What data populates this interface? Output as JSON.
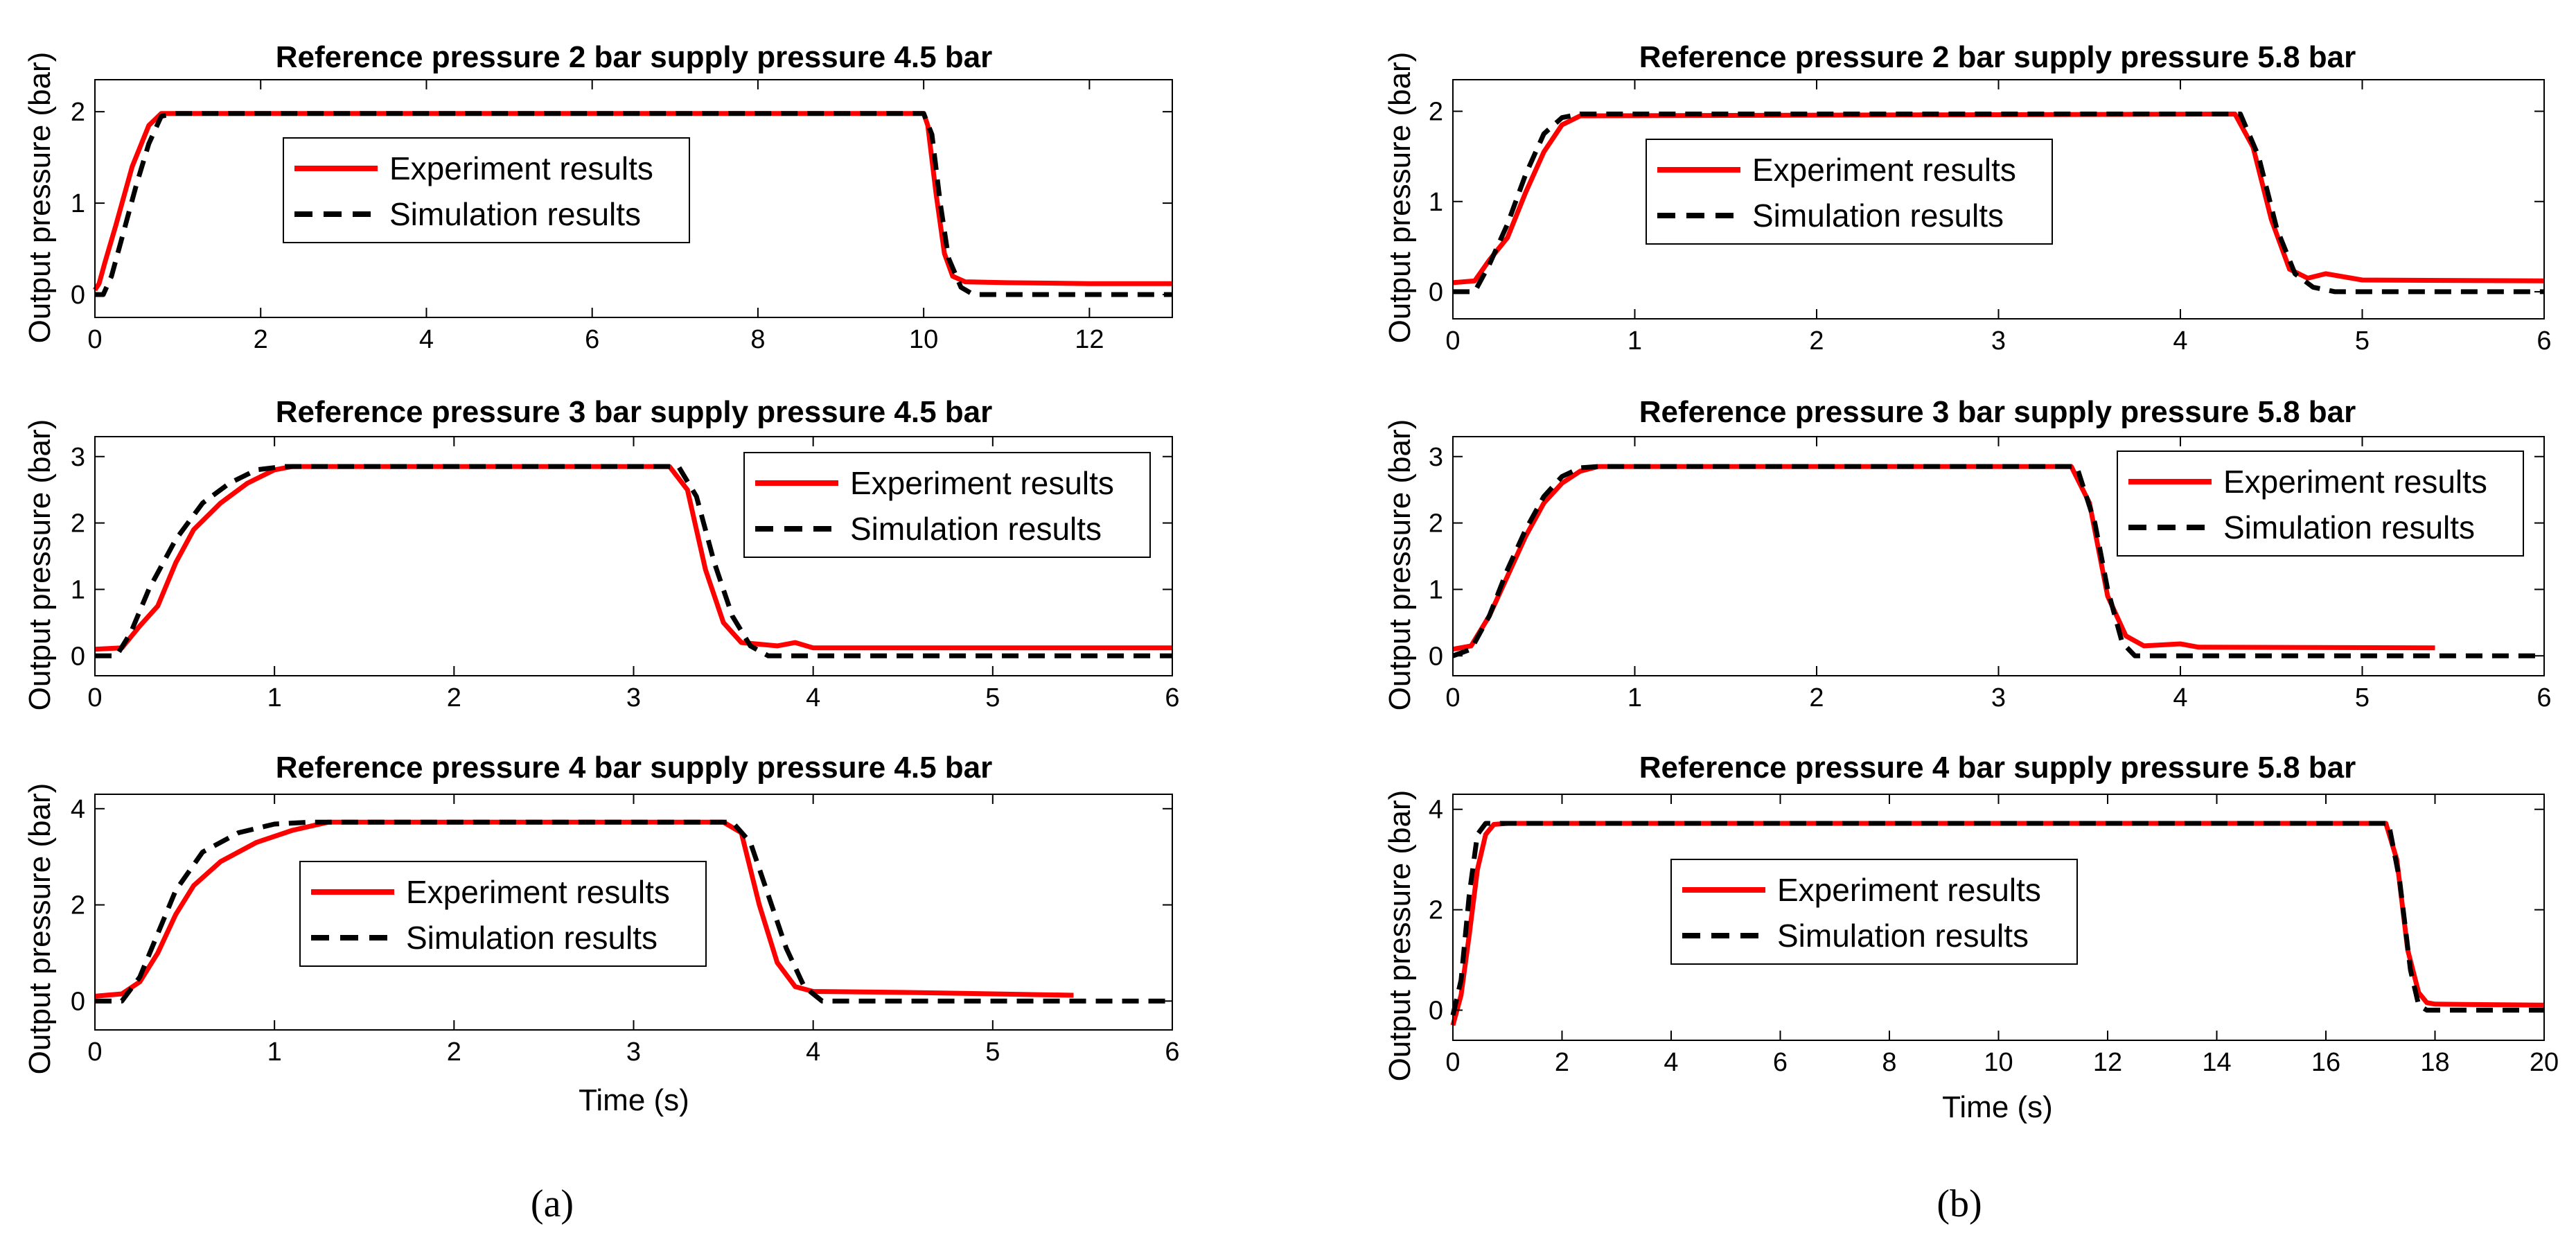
{
  "panel_labels": [
    "(a)",
    "(b)"
  ],
  "legend": {
    "experiment": "Experiment results",
    "simulation": "Simulation results"
  },
  "colors": {
    "experiment": "#ff0000",
    "simulation": "#000000",
    "axes": "#000000"
  },
  "chart_data": [
    {
      "type": "line",
      "title": "Reference pressure 2 bar supply pressure 4.5 bar",
      "xlabel": "",
      "ylabel": "Output pressure (bar)",
      "xlim": [
        0,
        13
      ],
      "ylim": [
        -0.25,
        2.35
      ],
      "xticks": [
        0,
        2,
        4,
        6,
        8,
        10,
        12
      ],
      "yticks": [
        0,
        1,
        2
      ],
      "legend_position": "center-left",
      "series": [
        {
          "name": "Experiment results",
          "style": "solid",
          "x": [
            0,
            0.05,
            0.12,
            0.25,
            0.45,
            0.65,
            0.8,
            0.9,
            10.0,
            10.05,
            10.15,
            10.25,
            10.35,
            10.5,
            11,
            12,
            13
          ],
          "y": [
            0.05,
            0.12,
            0.35,
            0.75,
            1.4,
            1.85,
            1.98,
            1.98,
            1.98,
            1.85,
            1.1,
            0.45,
            0.2,
            0.14,
            0.13,
            0.12,
            0.12
          ]
        },
        {
          "name": "Simulation results",
          "style": "dashed",
          "x": [
            0,
            0.1,
            0.2,
            0.35,
            0.5,
            0.65,
            0.8,
            0.95,
            10.0,
            10.1,
            10.2,
            10.3,
            10.45,
            10.6,
            13
          ],
          "y": [
            0,
            0,
            0.2,
            0.7,
            1.2,
            1.65,
            1.95,
            1.98,
            1.98,
            1.75,
            1.0,
            0.4,
            0.08,
            0,
            0
          ]
        }
      ]
    },
    {
      "type": "line",
      "title": "Reference pressure 3 bar supply pressure 4.5 bar",
      "xlabel": "",
      "ylabel": "Output pressure (bar)",
      "xlim": [
        0,
        6
      ],
      "ylim": [
        -0.3,
        3.3
      ],
      "xticks": [
        0,
        1,
        2,
        3,
        4,
        5,
        6
      ],
      "yticks": [
        0,
        1,
        2,
        3
      ],
      "legend_position": "top-right",
      "series": [
        {
          "name": "Experiment results",
          "style": "solid",
          "x": [
            0,
            0.15,
            0.25,
            0.35,
            0.45,
            0.55,
            0.7,
            0.85,
            1.0,
            1.1,
            3.2,
            3.3,
            3.4,
            3.5,
            3.6,
            3.8,
            3.9,
            4.0,
            6.0
          ],
          "y": [
            0.1,
            0.12,
            0.45,
            0.75,
            1.4,
            1.9,
            2.3,
            2.6,
            2.8,
            2.85,
            2.85,
            2.5,
            1.3,
            0.5,
            0.2,
            0.15,
            0.2,
            0.12,
            0.12
          ]
        },
        {
          "name": "Simulation results",
          "style": "dashed",
          "x": [
            0,
            0.12,
            0.2,
            0.3,
            0.45,
            0.6,
            0.75,
            0.9,
            1.05,
            3.25,
            3.35,
            3.45,
            3.55,
            3.65,
            3.75,
            6.0
          ],
          "y": [
            0,
            0,
            0.35,
            1.0,
            1.75,
            2.3,
            2.6,
            2.8,
            2.85,
            2.85,
            2.4,
            1.4,
            0.6,
            0.15,
            0,
            0
          ]
        }
      ]
    },
    {
      "type": "line",
      "title": "Reference pressure 4 bar supply pressure 4.5 bar",
      "xlabel": "Time (s)",
      "ylabel": "Output pressure (bar)",
      "xlim": [
        0,
        6
      ],
      "ylim": [
        -0.6,
        4.3
      ],
      "xticks": [
        0,
        1,
        2,
        3,
        4,
        5,
        6
      ],
      "yticks": [
        0,
        2,
        4
      ],
      "legend_position": "center",
      "series": [
        {
          "name": "Experiment results",
          "style": "solid",
          "x": [
            0,
            0.15,
            0.25,
            0.35,
            0.45,
            0.55,
            0.7,
            0.9,
            1.1,
            1.3,
            3.5,
            3.6,
            3.7,
            3.8,
            3.9,
            4.0,
            4.5,
            5.0,
            5.45
          ],
          "y": [
            0.1,
            0.15,
            0.4,
            1.0,
            1.8,
            2.4,
            2.9,
            3.3,
            3.55,
            3.72,
            3.72,
            3.5,
            2.0,
            0.8,
            0.3,
            0.2,
            0.18,
            0.15,
            0.12
          ]
        },
        {
          "name": "Simulation results",
          "style": "dashed",
          "x": [
            0,
            0.15,
            0.25,
            0.35,
            0.45,
            0.6,
            0.8,
            1.0,
            1.2,
            3.55,
            3.65,
            3.75,
            3.85,
            3.95,
            4.05,
            6.0
          ],
          "y": [
            0,
            0,
            0.5,
            1.4,
            2.3,
            3.1,
            3.5,
            3.68,
            3.72,
            3.72,
            3.3,
            2.2,
            1.1,
            0.3,
            0,
            0
          ]
        }
      ]
    },
    {
      "type": "line",
      "title": "Reference pressure 2 bar supply pressure 5.8 bar",
      "xlabel": "",
      "ylabel": "Output pressure (bar)",
      "xlim": [
        0,
        6
      ],
      "ylim": [
        -0.3,
        2.35
      ],
      "xticks": [
        0,
        1,
        2,
        3,
        4,
        5,
        6
      ],
      "yticks": [
        0,
        1,
        2
      ],
      "legend_position": "center-left",
      "series": [
        {
          "name": "Experiment results",
          "style": "solid",
          "x": [
            0,
            0.12,
            0.2,
            0.3,
            0.4,
            0.5,
            0.6,
            0.7,
            4.3,
            4.4,
            4.5,
            4.6,
            4.7,
            4.8,
            5.0,
            6.0
          ],
          "y": [
            0.1,
            0.12,
            0.35,
            0.6,
            1.1,
            1.55,
            1.85,
            1.95,
            1.97,
            1.6,
            0.8,
            0.25,
            0.15,
            0.2,
            0.13,
            0.12
          ]
        },
        {
          "name": "Simulation results",
          "style": "dashed",
          "x": [
            0,
            0.12,
            0.2,
            0.3,
            0.4,
            0.5,
            0.6,
            0.7,
            4.33,
            4.43,
            4.53,
            4.63,
            4.73,
            4.85,
            6.0
          ],
          "y": [
            0,
            0,
            0.3,
            0.75,
            1.3,
            1.75,
            1.93,
            1.97,
            1.97,
            1.5,
            0.7,
            0.2,
            0.05,
            0,
            0
          ]
        }
      ]
    },
    {
      "type": "line",
      "title": "Reference pressure 3 bar supply pressure 5.8 bar",
      "xlabel": "",
      "ylabel": "Output pressure (bar)",
      "xlim": [
        0,
        6
      ],
      "ylim": [
        -0.3,
        3.3
      ],
      "xticks": [
        0,
        1,
        2,
        3,
        4,
        5,
        6
      ],
      "yticks": [
        0,
        1,
        2,
        3
      ],
      "legend_position": "top-right",
      "series": [
        {
          "name": "Experiment results",
          "style": "solid",
          "x": [
            0,
            0.1,
            0.2,
            0.3,
            0.4,
            0.5,
            0.6,
            0.7,
            0.8,
            3.4,
            3.5,
            3.6,
            3.7,
            3.8,
            4.0,
            4.1,
            5.4
          ],
          "y": [
            0.1,
            0.15,
            0.6,
            1.2,
            1.8,
            2.3,
            2.6,
            2.78,
            2.85,
            2.85,
            2.3,
            0.9,
            0.3,
            0.15,
            0.18,
            0.13,
            0.12
          ]
        },
        {
          "name": "Simulation results",
          "style": "dashed",
          "x": [
            0,
            0.1,
            0.2,
            0.3,
            0.4,
            0.5,
            0.6,
            0.7,
            0.8,
            3.43,
            3.53,
            3.6,
            3.68,
            3.75,
            6.0
          ],
          "y": [
            0,
            0.1,
            0.6,
            1.3,
            1.9,
            2.4,
            2.7,
            2.83,
            2.85,
            2.85,
            2.0,
            1.0,
            0.2,
            0,
            0
          ]
        }
      ]
    },
    {
      "type": "line",
      "title": "Reference pressure 4 bar supply pressure 5.8 bar",
      "xlabel": "Time (s)",
      "ylabel": "Output pressure (bar)",
      "xlim": [
        0,
        20
      ],
      "ylim": [
        -0.6,
        4.3
      ],
      "xticks": [
        0,
        2,
        4,
        6,
        8,
        10,
        12,
        14,
        16,
        18,
        20
      ],
      "yticks": [
        0,
        2,
        4
      ],
      "legend_position": "center-left",
      "series": [
        {
          "name": "Experiment results",
          "style": "solid",
          "x": [
            0,
            0.15,
            0.3,
            0.45,
            0.6,
            0.75,
            1.0,
            17.1,
            17.3,
            17.5,
            17.7,
            17.85,
            18.0,
            20.0
          ],
          "y": [
            -0.3,
            0.3,
            1.5,
            2.8,
            3.5,
            3.7,
            3.72,
            3.72,
            3.0,
            1.2,
            0.35,
            0.15,
            0.12,
            0.1
          ]
        },
        {
          "name": "Simulation results",
          "style": "dashed",
          "x": [
            0,
            0.15,
            0.3,
            0.45,
            0.6,
            0.8,
            17.15,
            17.35,
            17.55,
            17.7,
            17.85,
            20.0
          ],
          "y": [
            -0.1,
            0.6,
            2.3,
            3.5,
            3.72,
            3.72,
            3.72,
            2.6,
            0.8,
            0.1,
            0,
            0
          ]
        }
      ]
    }
  ]
}
